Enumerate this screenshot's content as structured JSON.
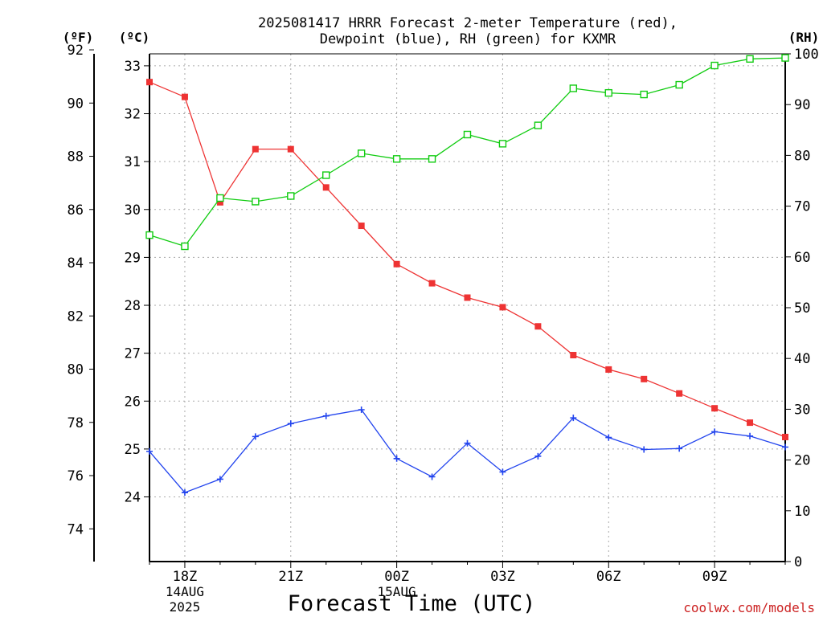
{
  "title_lines": [
    "2025081417 HRRR Forecast 2-meter Temperature (red),",
    "Dewpoint (blue), RH (green) for KXMR"
  ],
  "units": {
    "left_outer": "(ºF)",
    "left_inner": "(ºC)",
    "right": "(RH)"
  },
  "xlabel": "Forecast Time (UTC)",
  "watermark": "coolwx.com/models",
  "x_ticks": [
    {
      "h": 1,
      "label": "18Z",
      "sub": [
        "14AUG",
        "2025"
      ]
    },
    {
      "h": 4,
      "label": "21Z",
      "sub": []
    },
    {
      "h": 7,
      "label": "00Z",
      "sub": [
        "15AUG"
      ]
    },
    {
      "h": 10,
      "label": "03Z",
      "sub": []
    },
    {
      "h": 13,
      "label": "06Z",
      "sub": []
    },
    {
      "h": 16,
      "label": "09Z",
      "sub": []
    }
  ],
  "chart_data": {
    "type": "line",
    "x_unit": "hours since 17Z 14AUG 2025",
    "x": [
      0,
      1,
      2,
      3,
      4,
      5,
      6,
      7,
      8,
      9,
      10,
      11,
      12,
      13,
      14,
      15,
      16,
      17,
      18
    ],
    "xlim": [
      0,
      18
    ],
    "axes": {
      "celsius": {
        "ylim": [
          22.65,
          33.25
        ],
        "ticks": [
          24,
          25,
          26,
          27,
          28,
          29,
          30,
          31,
          32,
          33
        ]
      },
      "fahrenheit": {
        "ticks": [
          74,
          76,
          78,
          80,
          82,
          84,
          86,
          88,
          90,
          92
        ]
      },
      "rh": {
        "ylim": [
          0,
          100
        ],
        "ticks": [
          0,
          10,
          20,
          30,
          40,
          50,
          60,
          70,
          80,
          90,
          100
        ]
      }
    },
    "grid": true,
    "series": [
      {
        "name": "Temperature",
        "color": "#ee3333",
        "axis": "celsius",
        "marker": "filled-square",
        "values": [
          32.66,
          32.35,
          30.15,
          31.26,
          31.26,
          30.46,
          29.66,
          28.86,
          28.46,
          28.16,
          27.96,
          27.56,
          26.96,
          26.66,
          26.46,
          26.16,
          25.85,
          25.55,
          25.25
        ]
      },
      {
        "name": "Dewpoint",
        "color": "#2244ee",
        "axis": "celsius",
        "marker": "plus",
        "values": [
          24.95,
          24.09,
          24.37,
          25.26,
          25.53,
          25.69,
          25.82,
          24.8,
          24.42,
          25.12,
          24.52,
          24.85,
          25.65,
          25.24,
          24.99,
          25.01,
          25.36,
          25.27,
          25.04
        ]
      },
      {
        "name": "RH",
        "color": "#11cc11",
        "axis": "rh",
        "marker": "open-square",
        "values": [
          64.3,
          62.1,
          71.6,
          70.9,
          72.0,
          76.1,
          80.4,
          79.3,
          79.3,
          84.1,
          82.3,
          85.9,
          93.2,
          92.3,
          92.0,
          93.9,
          97.7,
          99.0,
          99.2
        ]
      }
    ]
  }
}
